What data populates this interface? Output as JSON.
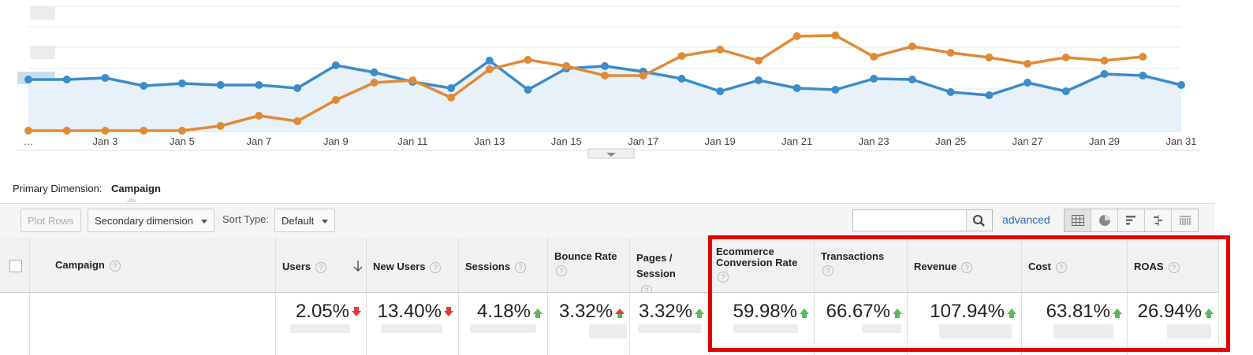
{
  "chart_data": {
    "type": "line",
    "x_labels": [
      "…",
      "Jan 3",
      "Jan 5",
      "Jan 7",
      "Jan 9",
      "Jan 11",
      "Jan 13",
      "Jan 15",
      "Jan 17",
      "Jan 19",
      "Jan 21",
      "Jan 23",
      "Jan 25",
      "Jan 27",
      "Jan 29",
      "Jan 31"
    ],
    "series": [
      {
        "color": "#3a8ccb",
        "area": true,
        "values": [
          101,
          101,
          99,
          109,
          106,
          108,
          108,
          112,
          83,
          92,
          104,
          112,
          77,
          114,
          87,
          84,
          91,
          100,
          116,
          102,
          112,
          114,
          100,
          101,
          117,
          121,
          105,
          116,
          94,
          96,
          108
        ]
      },
      {
        "color": "#e08a36",
        "area": false,
        "values": [
          166,
          166,
          166,
          166,
          166,
          160,
          147,
          154,
          127,
          105,
          102,
          124,
          88,
          76,
          84,
          96,
          96,
          71,
          63,
          77,
          46,
          45,
          72,
          59,
          67,
          73,
          81,
          73,
          77,
          72,
          null
        ]
      }
    ],
    "grid": true
  },
  "primary_dimension": {
    "label": "Primary Dimension:",
    "value": "Campaign"
  },
  "toolbar": {
    "plot_rows": "Plot Rows",
    "secondary_dimension": "Secondary dimension",
    "sort_type_label": "Sort Type:",
    "sort_type_value": "Default",
    "search_value": "",
    "advanced": "advanced"
  },
  "table": {
    "columns": [
      {
        "key": "campaign",
        "label": "Campaign",
        "help": "?"
      },
      {
        "key": "users",
        "label": "Users",
        "help": "?",
        "sorted": "descending"
      },
      {
        "key": "new_users",
        "label": "New Users",
        "help": "?"
      },
      {
        "key": "sessions",
        "label": "Sessions",
        "help": "?"
      },
      {
        "key": "bounce_rate",
        "label": "Bounce Rate",
        "help": "?"
      },
      {
        "key": "pages_session",
        "label": "Pages / Session",
        "help": "?"
      },
      {
        "key": "ecommerce_conversion_rate",
        "label": "Ecommerce Conversion Rate",
        "help": "?"
      },
      {
        "key": "transactions",
        "label": "Transactions",
        "help": "?"
      },
      {
        "key": "revenue",
        "label": "Revenue",
        "help": "?"
      },
      {
        "key": "cost",
        "label": "Cost",
        "help": "?"
      },
      {
        "key": "roas",
        "label": "ROAS",
        "help": "?"
      }
    ],
    "summary": {
      "users": {
        "value": "2.05%",
        "trend": "down"
      },
      "new_users": {
        "value": "13.40%",
        "trend": "down"
      },
      "sessions": {
        "value": "4.18%",
        "trend": "up"
      },
      "bounce_rate": {
        "value": "3.32%",
        "trend": "up-red"
      },
      "pages_session": {
        "value": "3.32%",
        "trend": "up"
      },
      "ecommerce_conversion_rate": {
        "value": "59.98%",
        "trend": "up"
      },
      "transactions": {
        "value": "66.67%",
        "trend": "up"
      },
      "revenue": {
        "value": "107.94%",
        "trend": "up"
      },
      "cost": {
        "value": "63.81%",
        "trend": "up"
      },
      "roas": {
        "value": "26.94%",
        "trend": "up"
      }
    }
  },
  "colors": {
    "highlight": "#e60000",
    "up": "#5bb85d",
    "down": "#e53935",
    "link": "#2a6ebb"
  }
}
